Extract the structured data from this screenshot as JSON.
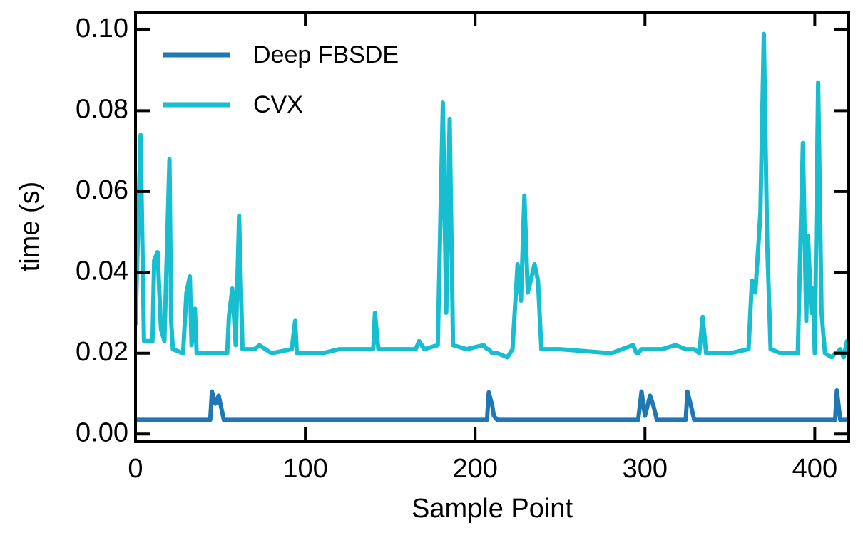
{
  "chart_data": {
    "type": "line",
    "x_label": "Sample Point",
    "y_label": "time (s)",
    "xlim": [
      0,
      420
    ],
    "ylim": [
      -0.0019,
      0.1044
    ],
    "xticks": [
      0,
      100,
      200,
      300,
      400
    ],
    "yticks": [
      {
        "value": 0,
        "label": "0.00"
      },
      {
        "value": 0.02,
        "label": "0.02"
      },
      {
        "value": 0.04,
        "label": "0.04"
      },
      {
        "value": 0.06,
        "label": "0.06"
      },
      {
        "value": 0.08,
        "label": "0.08"
      },
      {
        "value": 0.1,
        "label": "0.10"
      }
    ],
    "grid": false,
    "legend": "upper-left",
    "x": [
      0,
      3,
      5,
      10,
      11,
      13,
      15,
      17,
      20,
      21,
      22,
      28,
      30,
      32,
      33,
      35,
      36,
      44,
      45,
      47,
      49,
      52,
      54,
      55,
      57,
      59,
      61,
      63,
      70,
      73,
      80,
      92,
      94,
      95,
      110,
      120,
      140,
      141,
      143,
      165,
      167,
      170,
      178,
      181,
      183,
      185,
      187,
      195,
      205,
      207,
      208,
      210,
      211,
      213,
      219,
      222,
      225,
      227,
      229,
      231,
      235,
      237,
      239,
      250,
      280,
      293,
      295,
      296,
      298,
      300,
      303,
      305,
      307,
      310,
      318,
      324,
      325,
      327,
      329,
      332,
      334,
      336,
      350,
      361,
      363,
      365,
      367,
      368,
      370,
      372,
      374,
      380,
      390,
      393,
      395,
      396,
      398,
      399,
      400,
      402,
      404,
      406,
      410,
      412,
      413,
      415,
      417,
      419,
      420
    ],
    "series": [
      {
        "name": "Deep FBSDE",
        "color": "#1f77b4",
        "values": [
          0.0035,
          0.0035,
          0.0035,
          0.0035,
          0.0035,
          0.0035,
          0.0035,
          0.0035,
          0.0035,
          0.0035,
          0.0035,
          0.0035,
          0.0035,
          0.0035,
          0.0035,
          0.0035,
          0.0035,
          0.0035,
          0.0105,
          0.0075,
          0.0095,
          0.0035,
          0.0035,
          0.0035,
          0.0035,
          0.0035,
          0.0035,
          0.0035,
          0.0035,
          0.0035,
          0.0035,
          0.0035,
          0.0035,
          0.0035,
          0.0035,
          0.0035,
          0.0035,
          0.0035,
          0.0035,
          0.0035,
          0.0035,
          0.0035,
          0.0035,
          0.0035,
          0.0035,
          0.0035,
          0.0035,
          0.0035,
          0.0035,
          0.0035,
          0.0103,
          0.0072,
          0.0045,
          0.0035,
          0.0035,
          0.0035,
          0.0035,
          0.0035,
          0.0035,
          0.0035,
          0.0035,
          0.0035,
          0.0035,
          0.0035,
          0.0035,
          0.0035,
          0.0035,
          0.0035,
          0.0105,
          0.0045,
          0.0095,
          0.007,
          0.0035,
          0.0035,
          0.0035,
          0.0035,
          0.0105,
          0.0072,
          0.0035,
          0.0035,
          0.0035,
          0.0035,
          0.0035,
          0.0035,
          0.0035,
          0.0035,
          0.0035,
          0.0035,
          0.0035,
          0.0035,
          0.0035,
          0.0035,
          0.0035,
          0.0035,
          0.0035,
          0.0035,
          0.0035,
          0.0035,
          0.0035,
          0.0035,
          0.0035,
          0.0035,
          0.0035,
          0.0035,
          0.0108,
          0.0035,
          0.0035,
          0.0035,
          0.0035
        ]
      },
      {
        "name": "CVX",
        "color": "#17becf",
        "values": [
          0.027,
          0.074,
          0.023,
          0.023,
          0.043,
          0.045,
          0.026,
          0.023,
          0.068,
          0.028,
          0.021,
          0.02,
          0.035,
          0.039,
          0.022,
          0.031,
          0.02,
          0.02,
          0.02,
          0.02,
          0.02,
          0.02,
          0.02,
          0.029,
          0.036,
          0.022,
          0.054,
          0.021,
          0.021,
          0.022,
          0.02,
          0.021,
          0.028,
          0.02,
          0.02,
          0.021,
          0.021,
          0.03,
          0.021,
          0.021,
          0.023,
          0.021,
          0.022,
          0.082,
          0.03,
          0.078,
          0.022,
          0.021,
          0.022,
          0.021,
          0.021,
          0.02,
          0.02,
          0.02,
          0.019,
          0.021,
          0.042,
          0.033,
          0.059,
          0.035,
          0.042,
          0.038,
          0.021,
          0.021,
          0.02,
          0.022,
          0.02,
          0.02,
          0.021,
          0.021,
          0.021,
          0.021,
          0.021,
          0.021,
          0.022,
          0.021,
          0.021,
          0.021,
          0.021,
          0.02,
          0.029,
          0.02,
          0.02,
          0.021,
          0.038,
          0.035,
          0.048,
          0.055,
          0.099,
          0.047,
          0.021,
          0.02,
          0.02,
          0.072,
          0.028,
          0.049,
          0.03,
          0.036,
          0.02,
          0.087,
          0.03,
          0.02,
          0.019,
          0.02,
          0.02,
          0.021,
          0.019,
          0.023,
          0.019
        ]
      }
    ]
  }
}
